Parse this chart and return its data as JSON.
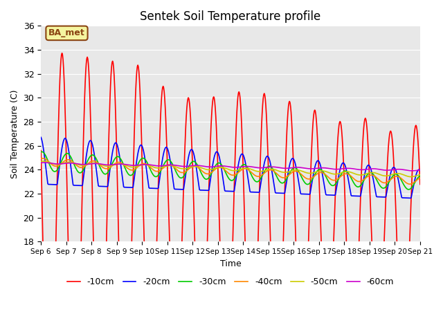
{
  "title": "Sentek Soil Temperature profile",
  "ylabel": "Soil Temperature (C)",
  "xlabel": "Time",
  "ylim": [
    18,
    36
  ],
  "annotation": "BA_met",
  "legend_labels": [
    "-10cm",
    "-20cm",
    "-30cm",
    "-40cm",
    "-50cm",
    "-60cm"
  ],
  "line_colors": [
    "#ff0000",
    "#0000ff",
    "#00cc00",
    "#ff8800",
    "#cccc00",
    "#cc00cc"
  ],
  "line_widths": [
    1.2,
    1.2,
    1.2,
    1.2,
    1.2,
    1.2
  ],
  "bg_color": "#e8e8e8",
  "fig_bg": "#ffffff",
  "xtick_labels": [
    "Sep 6",
    "Sep 7",
    "Sep 8",
    "Sep 9",
    "Sep 10",
    "Sep 11",
    "Sep 12",
    "Sep 13",
    "Sep 14",
    "Sep 15",
    "Sep 16",
    "Sep 17",
    "Sep 18",
    "Sep 19",
    "Sep 20",
    "Sep 21"
  ],
  "ytick_values": [
    18,
    20,
    22,
    24,
    26,
    28,
    30,
    32,
    34,
    36
  ]
}
